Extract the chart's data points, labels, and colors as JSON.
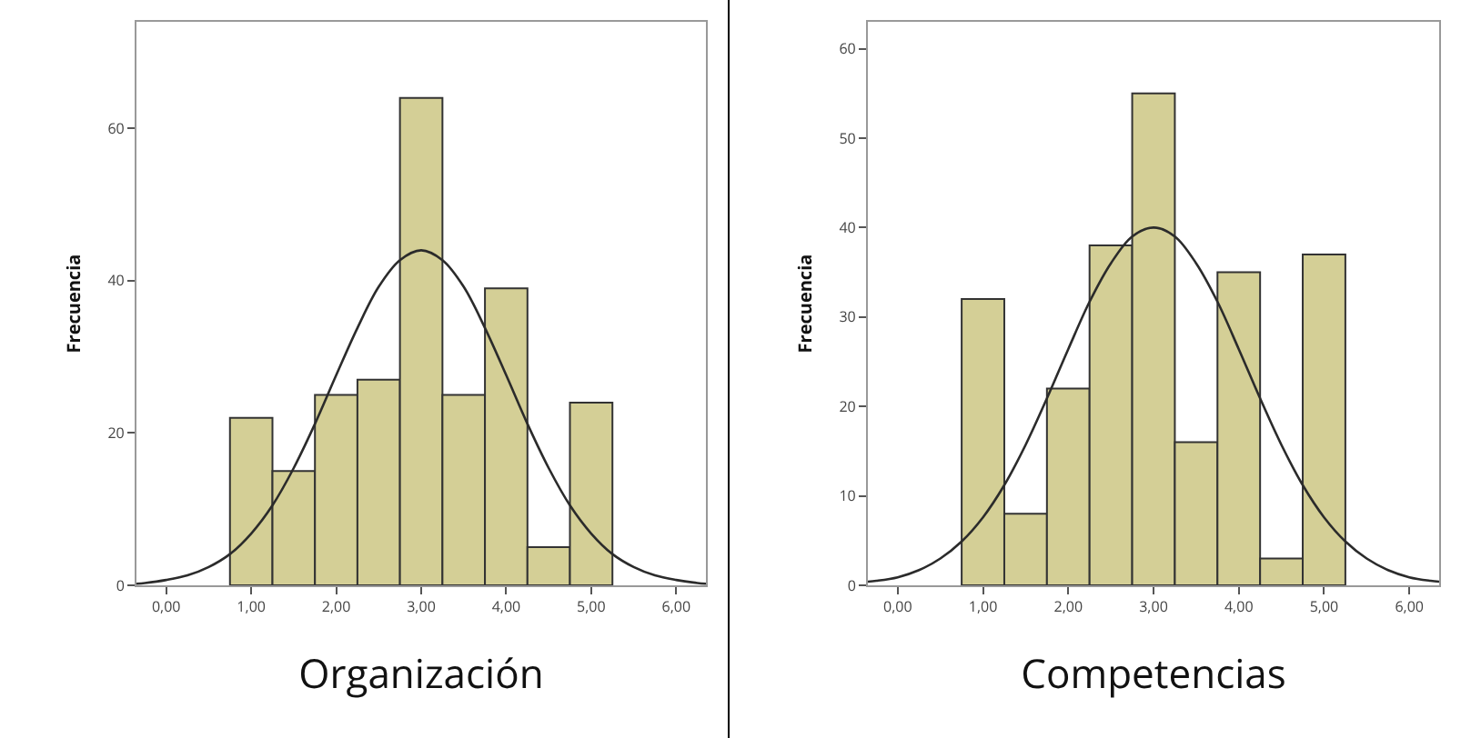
{
  "chart_data": [
    {
      "type": "histogram",
      "xlabel": "Organización",
      "ylabel": "Frecuencia",
      "bins": [
        0.75,
        1.25,
        1.75,
        2.25,
        2.75,
        3.25,
        3.75,
        4.25,
        4.75,
        5.25
      ],
      "values": [
        22,
        15,
        25,
        27,
        64,
        25,
        39,
        5,
        24
      ],
      "color": "#d4cf96",
      "xlim": [
        -0.35,
        6.35
      ],
      "ylim": [
        0,
        74
      ],
      "xticks": [
        {
          "value": 0,
          "label": "0,00"
        },
        {
          "value": 1,
          "label": "1,00"
        },
        {
          "value": 2,
          "label": "2,00"
        },
        {
          "value": 3,
          "label": "3,00"
        },
        {
          "value": 4,
          "label": "4,00"
        },
        {
          "value": 5,
          "label": "5,00"
        },
        {
          "value": 6,
          "label": "6,00"
        }
      ],
      "yticks": [
        0,
        20,
        40,
        60
      ],
      "series": [
        {
          "type": "line",
          "color": "#2b2b2b",
          "x": [
            -0.35,
            -0.25,
            0,
            0.25,
            0.5,
            0.75,
            1,
            1.25,
            1.5,
            1.75,
            2,
            2.25,
            2.5,
            2.75,
            3,
            3.25,
            3.5,
            3.75,
            4,
            4.25,
            4.5,
            4.75,
            5,
            5.25,
            5.5,
            5.75,
            6,
            6.25,
            6.35
          ],
          "values": [
            0.2,
            0.3,
            0.7,
            1.3,
            2.4,
            4.1,
            6.8,
            10.5,
            15.4,
            21.2,
            27.6,
            33.8,
            39.2,
            42.7,
            44,
            42.7,
            39.2,
            33.8,
            27.6,
            21.2,
            15.4,
            10.5,
            6.8,
            4.1,
            2.4,
            1.3,
            0.7,
            0.3,
            0.2
          ]
        }
      ]
    },
    {
      "type": "histogram",
      "xlabel": "Competencias",
      "ylabel": "Frecuencia",
      "bins": [
        0.75,
        1.25,
        1.75,
        2.25,
        2.75,
        3.25,
        3.75,
        4.25,
        4.75,
        5.25
      ],
      "values": [
        32,
        8,
        22,
        38,
        55,
        16,
        35,
        3,
        37
      ],
      "color": "#d4cf96",
      "xlim": [
        -0.35,
        6.35
      ],
      "ylim": [
        0,
        63
      ],
      "xticks": [
        {
          "value": 0,
          "label": "0,00"
        },
        {
          "value": 1,
          "label": "1,00"
        },
        {
          "value": 2,
          "label": "2,00"
        },
        {
          "value": 3,
          "label": "3,00"
        },
        {
          "value": 4,
          "label": "4,00"
        },
        {
          "value": 5,
          "label": "5,00"
        },
        {
          "value": 6,
          "label": "6,00"
        }
      ],
      "yticks": [
        0,
        10,
        20,
        30,
        40,
        50,
        60
      ],
      "series": [
        {
          "type": "line",
          "color": "#2b2b2b",
          "x": [
            -0.35,
            -0.25,
            0,
            0.25,
            0.5,
            0.75,
            1,
            1.25,
            1.5,
            1.75,
            2,
            2.25,
            2.5,
            2.75,
            3,
            3.25,
            3.5,
            3.75,
            4,
            4.25,
            4.5,
            4.75,
            5,
            5.25,
            5.5,
            5.75,
            6,
            6.25,
            6.35
          ],
          "values": [
            0.4,
            0.5,
            0.9,
            1.7,
            3,
            4.9,
            7.6,
            11.2,
            15.7,
            20.9,
            26.4,
            31.7,
            36,
            39,
            40,
            39,
            36,
            31.7,
            26.4,
            20.9,
            15.7,
            11.2,
            7.6,
            4.9,
            3,
            1.7,
            0.9,
            0.5,
            0.4
          ]
        }
      ]
    }
  ]
}
